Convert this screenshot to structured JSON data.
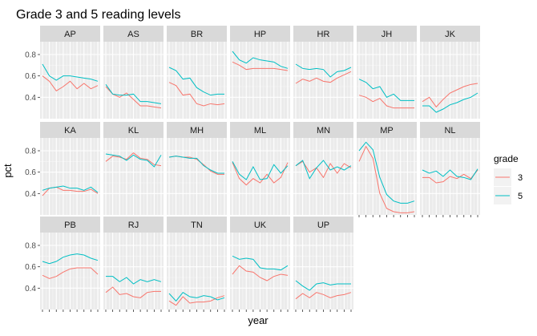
{
  "chart_data": {
    "type": "line",
    "title": "Grade 3 and 5 reading levels",
    "xlabel": "year",
    "ylabel": "pct",
    "yticks": [
      0.4,
      0.6,
      0.8
    ],
    "ylim": [
      0.2,
      0.92
    ],
    "x": [
      1,
      2,
      3,
      4,
      5,
      6,
      7,
      8,
      9
    ],
    "grid": true,
    "legend": {
      "title": "grade",
      "placement": "right",
      "entries": [
        {
          "label": "3",
          "color": "#F8766D"
        },
        {
          "label": "5",
          "color": "#00BFC4"
        }
      ]
    },
    "panels": [
      {
        "name": "AP",
        "series": [
          {
            "name": "3",
            "values": [
              0.6,
              0.55,
              0.46,
              0.5,
              0.55,
              0.48,
              0.53,
              0.48,
              0.51
            ]
          },
          {
            "name": "5",
            "values": [
              0.71,
              0.6,
              0.56,
              0.6,
              0.6,
              0.59,
              0.58,
              0.57,
              0.55
            ]
          }
        ]
      },
      {
        "name": "AS",
        "series": [
          {
            "name": "3",
            "values": [
              0.5,
              0.43,
              0.4,
              0.44,
              0.38,
              0.32,
              0.32,
              0.31,
              0.3
            ]
          },
          {
            "name": "5",
            "values": [
              0.52,
              0.43,
              0.42,
              0.42,
              0.43,
              0.36,
              0.36,
              0.35,
              0.34
            ]
          }
        ]
      },
      {
        "name": "BR",
        "series": [
          {
            "name": "3",
            "values": [
              0.54,
              0.51,
              0.42,
              0.43,
              0.34,
              0.32,
              0.34,
              0.33,
              0.34
            ]
          },
          {
            "name": "5",
            "values": [
              0.68,
              0.65,
              0.57,
              0.58,
              0.49,
              0.45,
              0.42,
              0.43,
              0.43
            ]
          }
        ]
      },
      {
        "name": "HP",
        "series": [
          {
            "name": "3",
            "values": [
              0.73,
              0.7,
              0.66,
              0.67,
              0.67,
              0.67,
              0.67,
              0.66,
              0.65
            ]
          },
          {
            "name": "5",
            "values": [
              0.83,
              0.75,
              0.72,
              0.77,
              0.75,
              0.74,
              0.73,
              0.69,
              0.67
            ]
          }
        ]
      },
      {
        "name": "HR",
        "series": [
          {
            "name": "3",
            "values": [
              0.53,
              0.57,
              0.55,
              0.58,
              0.55,
              0.54,
              0.58,
              0.61,
              0.64
            ]
          },
          {
            "name": "5",
            "values": [
              0.71,
              0.67,
              0.66,
              0.67,
              0.66,
              0.59,
              0.64,
              0.65,
              0.68
            ]
          }
        ]
      },
      {
        "name": "JH",
        "series": [
          {
            "name": "3",
            "values": [
              0.42,
              0.4,
              0.36,
              0.39,
              0.32,
              0.3,
              0.3,
              0.3,
              0.3
            ]
          },
          {
            "name": "5",
            "values": [
              0.57,
              0.54,
              0.48,
              0.5,
              0.4,
              0.43,
              0.37,
              0.37,
              0.37
            ]
          }
        ]
      },
      {
        "name": "JK",
        "series": [
          {
            "name": "3",
            "values": [
              0.36,
              0.4,
              0.31,
              0.38,
              0.44,
              0.47,
              0.5,
              0.52,
              0.53
            ]
          },
          {
            "name": "5",
            "values": [
              0.32,
              0.32,
              0.26,
              0.29,
              0.33,
              0.35,
              0.38,
              0.4,
              0.44
            ]
          }
        ]
      },
      {
        "name": "KA",
        "series": [
          {
            "name": "3",
            "values": [
              0.38,
              0.45,
              0.46,
              0.43,
              0.43,
              0.42,
              0.42,
              0.44,
              0.4
            ]
          },
          {
            "name": "5",
            "values": [
              0.43,
              0.45,
              0.46,
              0.47,
              0.45,
              0.45,
              0.43,
              0.46,
              0.41
            ]
          }
        ]
      },
      {
        "name": "KL",
        "series": [
          {
            "name": "3",
            "values": [
              0.7,
              0.75,
              0.74,
              0.72,
              0.78,
              0.73,
              0.72,
              0.67,
              0.66
            ]
          },
          {
            "name": "5",
            "values": [
              0.77,
              0.76,
              0.75,
              0.71,
              0.76,
              0.72,
              0.71,
              0.65,
              0.76
            ]
          }
        ]
      },
      {
        "name": "MH",
        "series": [
          {
            "name": "3",
            "values": [
              0.74,
              0.75,
              0.74,
              0.74,
              0.72,
              0.67,
              0.61,
              0.58,
              0.58
            ]
          },
          {
            "name": "5",
            "values": [
              0.74,
              0.75,
              0.74,
              0.73,
              0.73,
              0.66,
              0.62,
              0.59,
              0.59
            ]
          }
        ]
      },
      {
        "name": "ML",
        "series": [
          {
            "name": "3",
            "values": [
              0.69,
              0.54,
              0.48,
              0.54,
              0.5,
              0.58,
              0.5,
              0.55,
              0.69
            ]
          },
          {
            "name": "5",
            "values": [
              0.7,
              0.58,
              0.53,
              0.65,
              0.53,
              0.54,
              0.67,
              0.59,
              0.66
            ]
          }
        ]
      },
      {
        "name": "MN",
        "series": [
          {
            "name": "3",
            "values": [
              0.66,
              0.7,
              0.6,
              0.64,
              0.55,
              0.68,
              0.59,
              0.68,
              0.64
            ]
          },
          {
            "name": "5",
            "values": [
              0.66,
              0.71,
              0.54,
              0.64,
              0.71,
              0.62,
              0.65,
              0.62,
              0.66
            ]
          }
        ]
      },
      {
        "name": "MP",
        "series": [
          {
            "name": "3",
            "values": [
              0.7,
              0.84,
              0.73,
              0.4,
              0.26,
              0.23,
              0.22,
              0.22,
              0.23
            ]
          },
          {
            "name": "5",
            "values": [
              0.8,
              0.88,
              0.81,
              0.55,
              0.39,
              0.33,
              0.31,
              0.31,
              0.33
            ]
          }
        ]
      },
      {
        "name": "NL",
        "series": [
          {
            "name": "3",
            "values": [
              0.55,
              0.55,
              0.5,
              0.51,
              0.56,
              0.54,
              0.58,
              0.54,
              0.62
            ]
          },
          {
            "name": "5",
            "values": [
              0.62,
              0.59,
              0.61,
              0.56,
              0.62,
              0.56,
              0.55,
              0.53,
              0.63
            ]
          }
        ]
      },
      {
        "name": "PB",
        "series": [
          {
            "name": "3",
            "values": [
              0.52,
              0.49,
              0.51,
              0.55,
              0.58,
              0.59,
              0.59,
              0.59,
              0.53
            ]
          },
          {
            "name": "5",
            "values": [
              0.65,
              0.63,
              0.65,
              0.69,
              0.71,
              0.72,
              0.71,
              0.68,
              0.66
            ]
          }
        ]
      },
      {
        "name": "RJ",
        "series": [
          {
            "name": "3",
            "values": [
              0.36,
              0.41,
              0.34,
              0.35,
              0.32,
              0.31,
              0.36,
              0.37,
              0.37
            ]
          },
          {
            "name": "5",
            "values": [
              0.51,
              0.51,
              0.46,
              0.5,
              0.44,
              0.48,
              0.46,
              0.48,
              0.46
            ]
          }
        ]
      },
      {
        "name": "TN",
        "series": [
          {
            "name": "3",
            "values": [
              0.28,
              0.24,
              0.32,
              0.26,
              0.27,
              0.27,
              0.28,
              0.31,
              0.33
            ]
          },
          {
            "name": "5",
            "values": [
              0.35,
              0.28,
              0.36,
              0.32,
              0.31,
              0.33,
              0.32,
              0.29,
              0.31
            ]
          }
        ]
      },
      {
        "name": "UK",
        "series": [
          {
            "name": "3",
            "values": [
              0.53,
              0.61,
              0.56,
              0.55,
              0.5,
              0.47,
              0.51,
              0.53,
              0.52
            ]
          },
          {
            "name": "5",
            "values": [
              0.7,
              0.67,
              0.68,
              0.67,
              0.59,
              0.58,
              0.58,
              0.57,
              0.61
            ]
          }
        ]
      },
      {
        "name": "UP",
        "series": [
          {
            "name": "3",
            "values": [
              0.3,
              0.35,
              0.31,
              0.36,
              0.34,
              0.31,
              0.33,
              0.34,
              0.36
            ]
          },
          {
            "name": "5",
            "values": [
              0.47,
              0.42,
              0.38,
              0.44,
              0.45,
              0.43,
              0.44,
              0.44,
              0.44
            ]
          }
        ]
      }
    ]
  }
}
